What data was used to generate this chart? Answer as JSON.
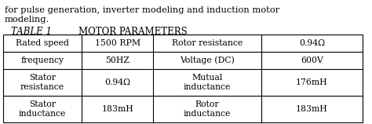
{
  "title_left": "TABLE 1",
  "title_right": "MOTOR PARAMETERS",
  "header_line1": "for pulse generation, inverter modeling and induction motor",
  "header_line2": "modeling.",
  "rows": [
    [
      "Rated speed",
      "1500 RPM",
      "Rotor resistance",
      "0.94Ω"
    ],
    [
      "frequency",
      "50HZ",
      "Voltage (DC)",
      "600V"
    ],
    [
      "Stator\nresistance",
      "0.94Ω",
      "Mutual\ninductance",
      "176mH"
    ],
    [
      "Stator\ninductance",
      "183mH",
      "Rotor\ninductance",
      "183mH"
    ]
  ],
  "bg_color": "#ffffff",
  "text_color": "#000000",
  "border_color": "#000000",
  "font_size": 7.8,
  "title_font_size": 8.5,
  "header_font_size": 8.2
}
